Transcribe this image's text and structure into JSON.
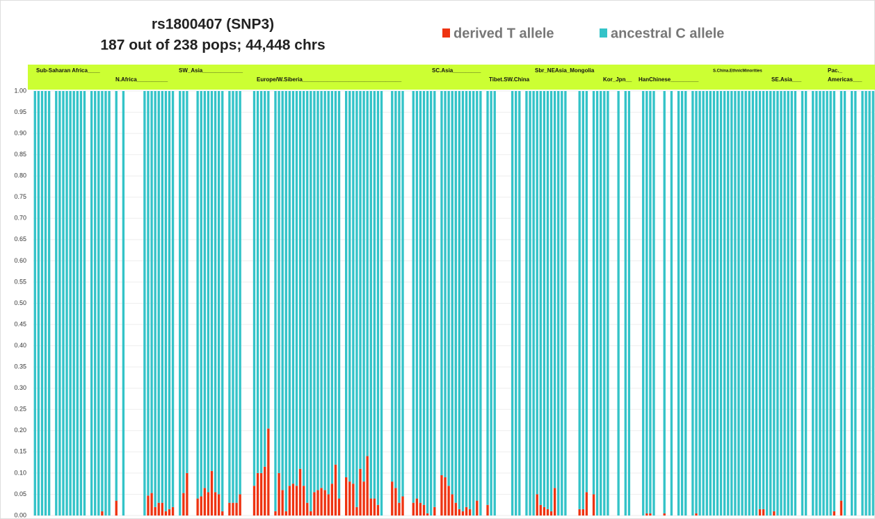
{
  "chart_data": {
    "type": "stacked_bar",
    "title": [
      "rs1800407  (SNP3)",
      "187 out of 238 pops;   44,448 chrs"
    ],
    "annotations": [
      "Sub-Saharan Africa____",
      "N.Africa__________",
      "SW_Asia_____________",
      "Europe/W.Siberia________________________________",
      "SC.Asia_________",
      "Tibet.SW.China",
      "Sbr_NEAsia_Mongolia",
      "Kor_Jpn__",
      "HanChinese_________",
      "S.China.EthnicMinorities",
      "SE.Asia___",
      "Pac._",
      "Americas___"
    ],
    "categories": [
      null,
      null,
      null,
      null,
      null,
      null,
      null,
      null,
      null,
      null,
      null,
      null,
      null,
      null,
      null,
      null,
      null,
      null,
      null,
      null,
      null,
      null,
      null,
      null,
      null,
      null,
      null,
      null,
      null,
      null,
      null,
      null,
      null,
      null,
      null,
      null,
      null,
      null,
      null,
      null,
      null,
      null,
      null,
      null,
      null,
      null,
      null,
      null,
      null,
      null,
      null,
      null,
      null,
      null,
      null,
      null,
      null,
      null,
      null,
      null,
      null,
      null,
      null,
      null,
      null,
      null,
      null,
      null,
      null,
      null,
      null,
      null,
      null,
      null,
      null,
      null,
      null,
      null,
      null,
      null,
      null,
      null,
      null,
      null,
      null,
      null,
      null,
      null,
      null,
      null,
      null,
      null,
      null,
      null,
      null,
      null,
      null,
      null,
      null,
      null,
      null,
      null,
      null,
      null,
      null,
      null,
      null,
      null,
      null,
      null,
      null,
      null,
      null,
      null,
      null,
      null,
      null,
      null,
      null,
      null,
      null,
      null,
      null,
      null,
      null,
      null,
      null,
      null,
      null,
      null,
      null,
      null,
      null,
      null,
      null,
      null,
      null,
      null,
      null,
      null,
      null,
      null,
      null,
      null,
      null,
      null,
      null,
      null,
      null,
      null,
      null,
      null,
      null,
      null,
      null,
      null,
      null,
      null,
      null,
      null,
      null,
      null,
      null,
      null,
      null,
      null,
      null,
      null,
      null,
      null,
      null,
      null,
      null,
      null,
      null,
      null,
      null,
      null,
      null,
      null,
      null,
      null,
      null,
      null,
      null,
      null,
      null,
      null,
      null,
      null,
      null,
      null,
      null,
      null,
      null,
      null,
      null,
      null,
      null,
      null,
      null,
      null,
      null,
      null,
      null,
      null,
      null,
      null,
      null,
      null,
      null,
      null,
      null,
      null,
      null,
      null,
      null,
      null,
      null,
      null,
      null,
      null,
      null,
      null,
      null,
      null,
      null,
      null,
      null,
      null,
      null,
      null,
      null,
      null,
      null,
      null,
      null,
      null
    ],
    "series": [
      {
        "name": "derived T allele",
        "color": "#ee3311",
        "values": [
          0,
          0,
          0,
          0,
          0,
          null,
          0,
          0,
          0,
          0,
          0,
          0,
          0,
          0,
          0,
          null,
          0,
          0,
          0,
          0.01,
          0,
          0,
          null,
          0.035,
          null,
          0,
          null,
          null,
          null,
          null,
          null,
          0,
          0.047,
          0.053,
          0.02,
          0.03,
          0.03,
          0.01,
          0.015,
          0.02,
          null,
          0,
          0.053,
          0.1,
          null,
          null,
          0.04,
          0.045,
          0.065,
          0.055,
          0.105,
          0.055,
          0.05,
          0.01,
          null,
          0.03,
          0.03,
          0.03,
          0.05,
          null,
          null,
          null,
          0.07,
          0.1,
          0.1,
          0.115,
          0.205,
          null,
          0.01,
          0.1,
          0.06,
          0.01,
          0.07,
          0.075,
          0.07,
          0.11,
          0.07,
          0.03,
          0.01,
          0.055,
          0.06,
          0.065,
          0.06,
          0.05,
          0.075,
          0.12,
          0.04,
          null,
          0.09,
          0.08,
          0.075,
          0.02,
          0.11,
          0.08,
          0.14,
          0.04,
          0.04,
          0.025,
          0,
          null,
          null,
          0.08,
          0.065,
          0.03,
          0.045,
          null,
          null,
          0.03,
          0.04,
          0.03,
          0.025,
          0.005,
          0,
          0.02,
          null,
          0.095,
          0.09,
          0.07,
          0.05,
          0.03,
          0.015,
          0.01,
          0.02,
          0.015,
          0,
          0.035,
          0,
          null,
          0.025,
          0,
          0,
          null,
          null,
          null,
          null,
          0,
          0,
          0,
          null,
          0,
          0,
          0,
          0.05,
          0.025,
          0.02,
          0.015,
          0.01,
          0.065,
          0,
          0,
          0,
          null,
          null,
          null,
          0.015,
          0.015,
          0.055,
          null,
          0.05,
          0,
          0,
          0,
          0,
          null,
          null,
          0,
          null,
          0,
          0,
          null,
          null,
          null,
          0,
          0.005,
          0.005,
          0,
          null,
          null,
          0.005,
          null,
          0,
          null,
          0,
          0,
          0,
          null,
          0,
          0.005,
          0,
          0,
          0,
          0,
          0,
          0,
          0,
          0,
          0,
          0,
          0,
          0,
          0,
          0,
          0,
          0,
          0,
          0.015,
          0.015,
          0,
          0,
          0.01,
          0,
          0,
          0,
          0,
          0,
          0,
          null,
          0,
          0,
          null,
          0,
          0,
          0,
          0,
          0,
          0,
          0.01,
          null,
          0.035,
          0,
          null,
          0,
          0,
          null,
          0,
          0,
          0,
          0
        ]
      },
      {
        "name": "ancestral C allele",
        "color": "#33c3c8",
        "values": [
          1,
          1,
          1,
          1,
          1,
          null,
          1,
          1,
          1,
          1,
          1,
          1,
          1,
          1,
          1,
          null,
          1,
          1,
          1,
          0.99,
          1,
          1,
          null,
          0.965,
          null,
          1,
          null,
          null,
          null,
          null,
          null,
          1,
          0.953,
          0.947,
          0.98,
          0.97,
          0.97,
          0.99,
          0.985,
          0.98,
          null,
          1,
          0.947,
          0.9,
          null,
          null,
          0.96,
          0.955,
          0.935,
          0.945,
          0.895,
          0.945,
          0.95,
          0.99,
          null,
          0.97,
          0.97,
          0.97,
          0.95,
          null,
          null,
          null,
          0.93,
          0.9,
          0.9,
          0.885,
          0.795,
          null,
          0.99,
          0.9,
          0.94,
          0.99,
          0.93,
          0.925,
          0.93,
          0.89,
          0.93,
          0.97,
          0.99,
          0.945,
          0.94,
          0.935,
          0.94,
          0.95,
          0.925,
          0.88,
          0.96,
          null,
          0.91,
          0.92,
          0.925,
          0.98,
          0.89,
          0.92,
          0.86,
          0.96,
          0.96,
          0.975,
          1,
          null,
          null,
          0.92,
          0.935,
          0.97,
          0.955,
          null,
          null,
          0.97,
          0.96,
          0.97,
          0.975,
          0.995,
          1,
          0.98,
          null,
          0.905,
          0.91,
          0.93,
          0.95,
          0.97,
          0.985,
          0.99,
          0.98,
          0.985,
          1,
          0.965,
          1,
          null,
          0.975,
          1,
          1,
          null,
          null,
          null,
          null,
          1,
          1,
          1,
          null,
          1,
          1,
          1,
          0.95,
          0.975,
          0.98,
          0.985,
          0.99,
          0.935,
          1,
          1,
          1,
          null,
          null,
          null,
          0.985,
          0.985,
          0.945,
          null,
          0.95,
          1,
          1,
          1,
          1,
          null,
          null,
          1,
          null,
          1,
          1,
          null,
          null,
          null,
          1,
          0.995,
          0.995,
          1,
          null,
          null,
          0.995,
          null,
          1,
          null,
          1,
          1,
          1,
          null,
          1,
          0.995,
          1,
          1,
          1,
          1,
          1,
          1,
          1,
          1,
          1,
          1,
          1,
          1,
          1,
          1,
          1,
          1,
          1,
          0.985,
          0.985,
          1,
          1,
          0.99,
          1,
          1,
          1,
          1,
          1,
          1,
          null,
          1,
          1,
          null,
          1,
          1,
          1,
          1,
          1,
          1,
          0.99,
          null,
          0.965,
          1,
          null,
          1,
          1,
          null,
          1,
          1,
          1,
          1
        ]
      }
    ],
    "ylim": [
      0,
      1
    ],
    "yticks": [
      {
        "value": 0,
        "label": "0.00"
      },
      {
        "value": 0.05,
        "label": "0.05"
      },
      {
        "value": 0.1,
        "label": "0.10"
      },
      {
        "value": 0.15,
        "label": "0.15"
      },
      {
        "value": 0.2,
        "label": "0.20"
      },
      {
        "value": 0.25,
        "label": "0.25"
      },
      {
        "value": 0.3,
        "label": "0.30"
      },
      {
        "value": 0.35,
        "label": "0.35"
      },
      {
        "value": 0.4,
        "label": "0.40"
      },
      {
        "value": 0.45,
        "label": "0.45"
      },
      {
        "value": 0.5,
        "label": "0.50"
      },
      {
        "value": 0.55,
        "label": "0.55"
      },
      {
        "value": 0.6,
        "label": "0.60"
      },
      {
        "value": 0.65,
        "label": "0.65"
      },
      {
        "value": 0.7,
        "label": "0.70"
      },
      {
        "value": 0.75,
        "label": "0.75"
      },
      {
        "value": 0.8,
        "label": "0.80"
      },
      {
        "value": 0.85,
        "label": "0.85"
      },
      {
        "value": 0.9,
        "label": "0.90"
      },
      {
        "value": 0.95,
        "label": "0.95"
      },
      {
        "value": 1,
        "label": "1.00"
      }
    ],
    "grid": true
  }
}
